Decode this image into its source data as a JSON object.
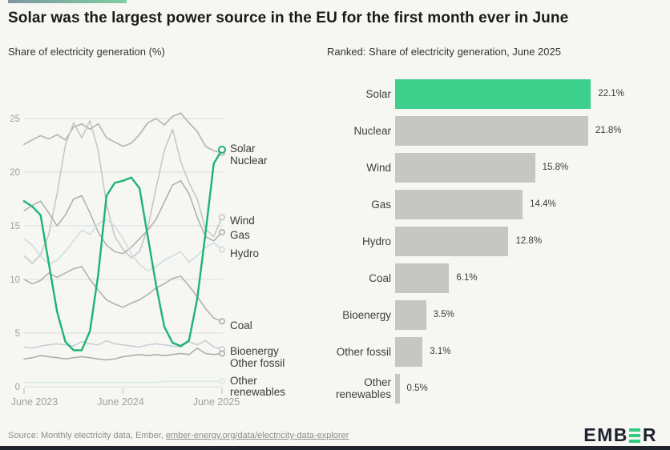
{
  "header": {
    "title": "Solar was the largest power source in the EU for the first month ever in June"
  },
  "line_chart": {
    "subtitle": "Share of electricity generation (%)"
  },
  "bar_chart": {
    "subtitle": "Ranked: Share of electricity generation, June 2025"
  },
  "colors": {
    "brand_green": "#3ed08d",
    "line_green": "#1db473",
    "bar_gray": "#c6c6c5",
    "grid": "#dcdcd8",
    "axis_text": "#a0a09c",
    "label_text": "#3a3a3a",
    "background": "#f6f6f2",
    "logo_dark": "#1d222e"
  },
  "chart_data": [
    {
      "type": "line",
      "title": "Share of electricity generation (%)",
      "ylabel": "%",
      "ylim": [
        0,
        25
      ],
      "yticks": [
        0,
        5,
        10,
        15,
        20,
        25
      ],
      "grid": true,
      "legend_position": "right-of-line-ends",
      "x_ticks": [
        {
          "i": 0,
          "label": "June 2023"
        },
        {
          "i": 12,
          "label": "June 2024"
        },
        {
          "i": 24,
          "label": "June 2025"
        }
      ],
      "x_unit": "month",
      "series": [
        {
          "id": "nuclear",
          "name": "Nuclear",
          "color": "#b6b6b4",
          "values": [
            22.6,
            23.0,
            23.4,
            23.1,
            23.5,
            23.0,
            24.2,
            24.5,
            24.0,
            24.5,
            23.2,
            22.8,
            22.4,
            22.7,
            23.5,
            24.6,
            25.0,
            24.4,
            25.2,
            25.5,
            24.6,
            23.8,
            22.4,
            22.0,
            21.8
          ]
        },
        {
          "id": "wind",
          "name": "Wind",
          "color": "#c2c6c5",
          "values": [
            12.2,
            11.5,
            12.3,
            14.2,
            18.0,
            22.5,
            24.6,
            23.2,
            24.8,
            22.0,
            17.0,
            14.0,
            12.8,
            12.0,
            12.6,
            14.8,
            18.5,
            22.0,
            24.0,
            21.0,
            19.0,
            17.5,
            14.7,
            14.0,
            15.8
          ]
        },
        {
          "id": "gas",
          "name": "Gas",
          "color": "#aab1b0",
          "values": [
            16.4,
            16.9,
            17.3,
            16.2,
            15.0,
            16.0,
            17.5,
            17.8,
            16.2,
            14.4,
            13.2,
            12.6,
            12.4,
            13.0,
            13.8,
            14.6,
            15.6,
            17.2,
            18.8,
            19.2,
            18.0,
            15.8,
            14.0,
            13.6,
            14.4
          ]
        },
        {
          "id": "hydro",
          "name": "Hydro",
          "color": "#ccdce4",
          "values": [
            13.8,
            13.2,
            12.2,
            11.4,
            11.8,
            12.6,
            13.6,
            14.6,
            14.2,
            15.2,
            15.6,
            15.0,
            13.8,
            12.4,
            11.4,
            10.8,
            11.2,
            11.8,
            12.2,
            12.6,
            11.6,
            12.2,
            13.0,
            13.4,
            12.8
          ]
        },
        {
          "id": "coal",
          "name": "Coal",
          "color": "#b2ada8",
          "values": [
            10.0,
            9.6,
            9.9,
            10.6,
            10.2,
            10.6,
            11.0,
            11.2,
            10.0,
            9.0,
            8.1,
            7.7,
            7.4,
            7.8,
            8.1,
            8.6,
            9.2,
            9.6,
            10.1,
            10.3,
            9.4,
            8.4,
            7.3,
            6.4,
            6.1
          ]
        },
        {
          "id": "bioenergy",
          "name": "Bioenergy",
          "color": "#c4ced5",
          "values": [
            3.7,
            3.6,
            3.8,
            3.9,
            4.0,
            3.9,
            3.8,
            4.2,
            4.0,
            3.9,
            4.3,
            4.0,
            3.9,
            3.8,
            3.7,
            3.9,
            4.0,
            3.9,
            3.8,
            3.7,
            4.2,
            3.9,
            4.3,
            3.7,
            3.5
          ]
        },
        {
          "id": "other_fossil",
          "name": "Other fossil",
          "color": "#aeaaa6",
          "values": [
            2.6,
            2.7,
            2.9,
            2.8,
            2.7,
            2.6,
            2.7,
            2.8,
            2.7,
            2.6,
            2.5,
            2.6,
            2.8,
            2.9,
            3.0,
            2.9,
            3.0,
            2.9,
            3.0,
            3.1,
            3.0,
            3.6,
            3.1,
            3.0,
            3.1
          ]
        },
        {
          "id": "other_renewables",
          "name": "Other renewables",
          "label_lines": [
            "Other",
            "renewables"
          ],
          "color": "#d9ece1",
          "values": [
            0.4,
            0.4,
            0.4,
            0.4,
            0.4,
            0.4,
            0.4,
            0.4,
            0.4,
            0.4,
            0.4,
            0.4,
            0.4,
            0.4,
            0.4,
            0.4,
            0.4,
            0.5,
            0.5,
            0.5,
            0.5,
            0.5,
            0.5,
            0.5,
            0.5
          ]
        },
        {
          "id": "solar",
          "name": "Solar",
          "color": "#1db473",
          "values": [
            17.3,
            16.8,
            16.0,
            11.5,
            7.0,
            4.2,
            3.4,
            3.4,
            5.2,
            10.5,
            17.8,
            19.0,
            19.2,
            19.5,
            18.5,
            14.0,
            9.5,
            5.6,
            4.1,
            3.8,
            4.3,
            8.2,
            14.3,
            20.8,
            22.1
          ]
        }
      ]
    },
    {
      "type": "bar",
      "title": "Ranked: Share of electricity generation, June 2025",
      "orientation": "horizontal",
      "categories": [
        "Solar",
        "Nuclear",
        "Wind",
        "Gas",
        "Hydro",
        "Coal",
        "Bioenergy",
        "Other fossil",
        "Other renewables"
      ],
      "values": [
        22.1,
        21.8,
        15.8,
        14.4,
        12.8,
        6.1,
        3.5,
        3.1,
        0.5
      ],
      "value_labels": [
        "22.1%",
        "21.8%",
        "15.8%",
        "14.4%",
        "12.8%",
        "6.1%",
        "3.5%",
        "3.1%",
        "0.5%"
      ],
      "highlight_index": 0,
      "highlight_color": "#3ed08d",
      "bar_color": "#c6c6c5",
      "xlim": [
        0,
        25
      ]
    }
  ],
  "footer": {
    "source_prefix": "Source: Monthly electricity data, Ember, ",
    "source_link": "ember-energy.org/data/electricity-data-explorer",
    "logo_text_left": "EMB",
    "logo_text_right": "R"
  }
}
